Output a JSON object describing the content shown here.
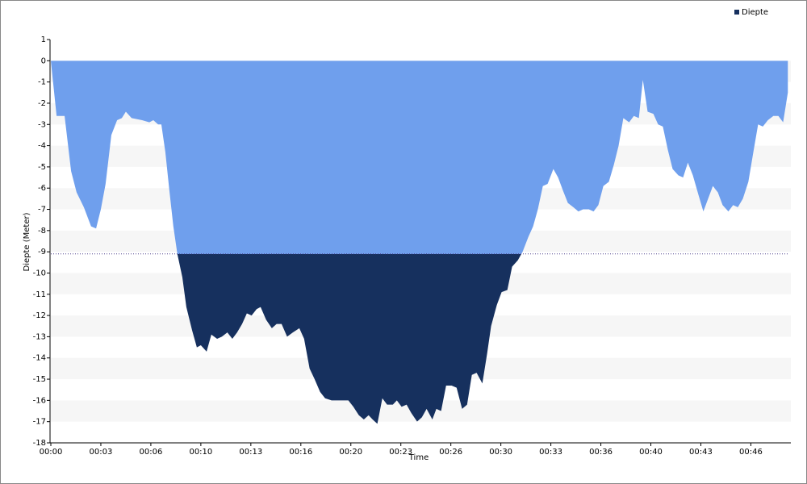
{
  "chart_data": {
    "type": "area",
    "title": null,
    "xlabel": "Time",
    "ylabel": "Diepte (Meter)",
    "series": [
      {
        "name": "Diepte",
        "colors": [
          "#6f9fed",
          "#16305e"
        ],
        "x": [
          0,
          23,
          55,
          81,
          103,
          132,
          161,
          181,
          200,
          219,
          242,
          265,
          284,
          300,
          323,
          365,
          394,
          410,
          429,
          442,
          458,
          474,
          490,
          506,
          526,
          542,
          565,
          584,
          600,
          623,
          642,
          665,
          684,
          706,
          726,
          745,
          765,
          784,
          803,
          823,
          839,
          861,
          884,
          903,
          923,
          945,
          968,
          994,
          1013,
          1035,
          1055,
          1077,
          1097,
          1123,
          1148,
          1174,
          1190,
          1210,
          1232,
          1252,
          1271,
          1287,
          1306,
          1326,
          1345,
          1368,
          1384,
          1403,
          1423,
          1442,
          1465,
          1484,
          1503,
          1526,
          1542,
          1561,
          1581,
          1603,
          1623,
          1645,
          1665,
          1684,
          1703,
          1726,
          1745,
          1761,
          1784,
          1803,
          1826,
          1845,
          1868,
          1887,
          1910,
          1929,
          1948,
          1968,
          1987,
          2010,
          2029,
          2048,
          2068,
          2090,
          2110,
          2129,
          2152,
          2171,
          2190,
          2210,
          2232,
          2252,
          2271,
          2290,
          2313,
          2332,
          2352,
          2368,
          2387,
          2410,
          2429,
          2448,
          2468,
          2487,
          2510,
          2529,
          2548,
          2568,
          2590,
          2610,
          2629,
          2648,
          2668,
          2687,
          2710,
          2729,
          2748,
          2768,
          2790,
          2810,
          2829,
          2848,
          2868,
          2890,
          2910,
          2929,
          2948
        ],
        "values": [
          0,
          -2.6,
          -2.6,
          -5.2,
          -6.2,
          -6.9,
          -7.8,
          -7.9,
          -7.0,
          -5.8,
          -3.5,
          -2.8,
          -2.7,
          -2.4,
          -2.7,
          -2.8,
          -2.9,
          -2.8,
          -3.0,
          -3.0,
          -4.3,
          -6.1,
          -7.8,
          -9.1,
          -10.2,
          -11.6,
          -12.7,
          -13.5,
          -13.4,
          -13.7,
          -12.9,
          -13.1,
          -13.0,
          -12.8,
          -13.1,
          -12.8,
          -12.4,
          -11.9,
          -12.0,
          -11.7,
          -11.6,
          -12.2,
          -12.6,
          -12.4,
          -12.4,
          -13.0,
          -12.8,
          -12.6,
          -13.1,
          -14.5,
          -15.0,
          -15.6,
          -15.9,
          -16.0,
          -16.0,
          -16.0,
          -16.0,
          -16.3,
          -16.7,
          -16.9,
          -16.7,
          -16.9,
          -17.1,
          -15.9,
          -16.2,
          -16.2,
          -16.0,
          -16.3,
          -16.2,
          -16.6,
          -17.0,
          -16.8,
          -16.4,
          -16.9,
          -16.4,
          -16.5,
          -15.3,
          -15.3,
          -15.4,
          -16.4,
          -16.2,
          -14.8,
          -14.7,
          -15.2,
          -13.8,
          -12.5,
          -11.5,
          -10.9,
          -10.8,
          -9.7,
          -9.4,
          -9.0,
          -8.3,
          -7.8,
          -7.0,
          -5.9,
          -5.8,
          -5.1,
          -5.5,
          -6.1,
          -6.7,
          -6.9,
          -7.1,
          -7.0,
          -7.0,
          -7.1,
          -6.8,
          -5.9,
          -5.7,
          -4.9,
          -4.0,
          -2.7,
          -2.9,
          -2.6,
          -2.7,
          -0.9,
          -2.4,
          -2.5,
          -3.0,
          -3.1,
          -4.2,
          -5.1,
          -5.4,
          -5.5,
          -4.8,
          -5.4,
          -6.3,
          -7.1,
          -6.5,
          -5.9,
          -6.2,
          -6.8,
          -7.1,
          -6.8,
          -6.9,
          -6.5,
          -5.7,
          -4.3,
          -3.0,
          -3.1,
          -2.8,
          -2.6,
          -2.6,
          -2.9,
          -1.5
        ]
      }
    ],
    "threshold": -9.1,
    "xlim": [
      0,
      2960
    ],
    "xticks": [
      {
        "value": 0,
        "label": "00:00"
      },
      {
        "value": 200,
        "label": "00:03"
      },
      {
        "value": 400,
        "label": "00:06"
      },
      {
        "value": 600,
        "label": "00:10"
      },
      {
        "value": 800,
        "label": "00:13"
      },
      {
        "value": 1000,
        "label": "00:16"
      },
      {
        "value": 1200,
        "label": "00:20"
      },
      {
        "value": 1400,
        "label": "00:23"
      },
      {
        "value": 1600,
        "label": "00:26"
      },
      {
        "value": 1800,
        "label": "00:30"
      },
      {
        "value": 2000,
        "label": "00:33"
      },
      {
        "value": 2200,
        "label": "00:36"
      },
      {
        "value": 2400,
        "label": "00:40"
      },
      {
        "value": 2600,
        "label": "00:43"
      },
      {
        "value": 2800,
        "label": "00:46"
      }
    ],
    "ylim": [
      -18,
      1
    ],
    "yticks": [
      -18,
      -17,
      -16,
      -15,
      -14,
      -13,
      -12,
      -11,
      -10,
      -9,
      -8,
      -7,
      -6,
      -5,
      -4,
      -3,
      -2,
      -1,
      0,
      1
    ],
    "grid": true,
    "legend": "top-right"
  }
}
